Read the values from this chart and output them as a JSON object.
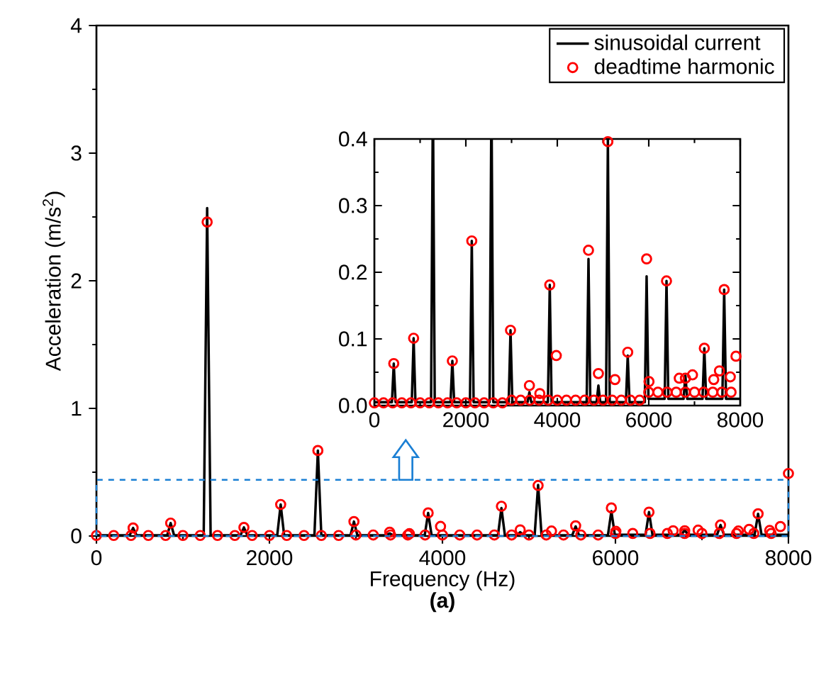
{
  "chart_data": [
    {
      "type": "line",
      "title": "(a)",
      "xlabel": "Frequency (Hz)",
      "ylabel": "Acceleration (m/s$^{2}$)",
      "xlim": [
        0,
        8000
      ],
      "ylim": [
        0,
        4
      ],
      "xticks": [
        0,
        2000,
        4000,
        6000,
        8000
      ],
      "yticks": [
        0,
        1,
        2,
        3,
        4
      ],
      "legend": "top right",
      "series": [
        {
          "name": "sinusoidal current",
          "type": "line",
          "color": "#000000",
          "x": [
            0,
            384,
            424,
            464,
            818,
            858,
            898,
            1240,
            1280,
            1320,
            1665,
            1705,
            1745,
            2090,
            2130,
            2170,
            2520,
            2560,
            2600,
            2937,
            2977,
            3017,
            3350,
            3390,
            3430,
            3795,
            3835,
            3875,
            4642,
            4682,
            4722,
            4859,
            4899,
            4939,
            5066,
            5106,
            5146,
            5500,
            5540,
            5580,
            5913,
            5953,
            5993,
            6348,
            6388,
            6428,
            6761,
            6801,
            6841,
            7175,
            7215,
            7255,
            7609,
            7649,
            7689,
            8000
          ],
          "values": [
            0.005,
            0.005,
            0.063,
            0.005,
            0.005,
            0.101,
            0.005,
            0.005,
            2.57,
            0.005,
            0.005,
            0.067,
            0.005,
            0.005,
            0.247,
            0.005,
            0.005,
            0.67,
            0.005,
            0.005,
            0.113,
            0.005,
            0.005,
            0.02,
            0.005,
            0.005,
            0.181,
            0.005,
            0.005,
            0.22,
            0.005,
            0.005,
            0.03,
            0.005,
            0.005,
            0.4,
            0.005,
            0.005,
            0.075,
            0.005,
            0.005,
            0.194,
            0.01,
            0.01,
            0.187,
            0.01,
            0.01,
            0.045,
            0.01,
            0.01,
            0.086,
            0.01,
            0.01,
            0.174,
            0.01,
            0.01
          ]
        },
        {
          "name": "deadtime harmonic",
          "type": "scatter",
          "marker": "circle",
          "color": "#ff0000",
          "x": [
            0,
            200,
            400,
            600,
            800,
            1000,
            1200,
            1400,
            1600,
            1800,
            2000,
            2200,
            2400,
            2600,
            2800,
            3000,
            3200,
            3400,
            3600,
            3800,
            4000,
            4200,
            4400,
            4600,
            4800,
            5000,
            5200,
            5400,
            5600,
            5800,
            6000,
            6200,
            6400,
            6600,
            6800,
            7000,
            7200,
            7400,
            7600,
            7800,
            424,
            858,
            1280,
            1705,
            2130,
            2560,
            2977,
            3390,
            3618,
            3835,
            3978,
            4682,
            4899,
            5106,
            5261,
            5540,
            5953,
            6005,
            6388,
            6667,
            6801,
            6956,
            7215,
            7421,
            7545,
            7649,
            7783,
            7907,
            8000
          ],
          "values": [
            0.004,
            0.004,
            0.004,
            0.004,
            0.004,
            0.004,
            0.004,
            0.004,
            0.004,
            0.004,
            0.004,
            0.004,
            0.004,
            0.004,
            0.004,
            0.008,
            0.008,
            0.008,
            0.008,
            0.008,
            0.008,
            0.008,
            0.008,
            0.008,
            0.008,
            0.008,
            0.008,
            0.008,
            0.008,
            0.008,
            0.02,
            0.02,
            0.02,
            0.02,
            0.02,
            0.02,
            0.02,
            0.02,
            0.02,
            0.02,
            0.063,
            0.101,
            2.46,
            0.067,
            0.247,
            0.67,
            0.113,
            0.03,
            0.018,
            0.181,
            0.075,
            0.233,
            0.048,
            0.396,
            0.039,
            0.08,
            0.22,
            0.036,
            0.187,
            0.041,
            0.041,
            0.046,
            0.086,
            0.039,
            0.052,
            0.174,
            0.043,
            0.074,
            0.49
          ]
        }
      ]
    },
    {
      "type": "line",
      "xlim": [
        0,
        8000
      ],
      "ylim": [
        0,
        0.4
      ],
      "xticks": [
        0,
        2000,
        4000,
        6000,
        8000
      ],
      "yticks": [
        {
          "value": 0,
          "label": "0.0"
        },
        0.1,
        0.2,
        0.3,
        0.4
      ],
      "series": [
        {
          "type": "line",
          "color": "#000000",
          "x": [
            0,
            384,
            424,
            464,
            818,
            858,
            898,
            1240,
            1274,
            1286,
            1320,
            1665,
            1705,
            1745,
            2090,
            2130,
            2170,
            2520,
            2554,
            2566,
            2600,
            2937,
            2977,
            3017,
            3350,
            3390,
            3430,
            3795,
            3835,
            3875,
            4642,
            4682,
            4722,
            4859,
            4899,
            4939,
            5066,
            5106,
            5146,
            5500,
            5540,
            5580,
            5913,
            5953,
            5993,
            6348,
            6388,
            6428,
            6761,
            6801,
            6841,
            7175,
            7215,
            7255,
            7609,
            7649,
            7689,
            8000
          ],
          "values": [
            0.005,
            0.005,
            0.063,
            0.005,
            0.005,
            0.101,
            0.005,
            0.005,
            0.4,
            0.4,
            0.005,
            0.005,
            0.067,
            0.005,
            0.005,
            0.247,
            0.005,
            0.005,
            0.4,
            0.4,
            0.005,
            0.005,
            0.113,
            0.005,
            0.005,
            0.02,
            0.005,
            0.005,
            0.181,
            0.005,
            0.005,
            0.22,
            0.005,
            0.005,
            0.03,
            0.005,
            0.005,
            0.4,
            0.005,
            0.005,
            0.075,
            0.005,
            0.005,
            0.194,
            0.01,
            0.01,
            0.187,
            0.01,
            0.01,
            0.045,
            0.01,
            0.01,
            0.086,
            0.01,
            0.01,
            0.174,
            0.01,
            0.01
          ]
        },
        {
          "type": "scatter",
          "marker": "circle",
          "color": "#ff0000",
          "x": [
            0,
            200,
            400,
            600,
            800,
            1000,
            1200,
            1400,
            1600,
            1800,
            2000,
            2200,
            2400,
            2600,
            2800,
            3000,
            3200,
            3400,
            3600,
            3800,
            4000,
            4200,
            4400,
            4600,
            4800,
            5000,
            5200,
            5400,
            5600,
            5800,
            6000,
            6200,
            6400,
            6600,
            6800,
            7000,
            7200,
            7400,
            7600,
            7800,
            424,
            858,
            1705,
            2130,
            2977,
            3390,
            3618,
            3835,
            3978,
            4682,
            4899,
            5106,
            5261,
            5540,
            5953,
            6005,
            6388,
            6667,
            6801,
            6956,
            7215,
            7421,
            7545,
            7649,
            7783,
            7907
          ],
          "values": [
            0.004,
            0.004,
            0.004,
            0.004,
            0.004,
            0.004,
            0.004,
            0.004,
            0.004,
            0.004,
            0.004,
            0.004,
            0.004,
            0.004,
            0.004,
            0.008,
            0.008,
            0.008,
            0.008,
            0.008,
            0.008,
            0.008,
            0.008,
            0.008,
            0.008,
            0.008,
            0.008,
            0.008,
            0.008,
            0.008,
            0.02,
            0.02,
            0.02,
            0.02,
            0.02,
            0.02,
            0.02,
            0.02,
            0.02,
            0.02,
            0.063,
            0.101,
            0.067,
            0.247,
            0.113,
            0.03,
            0.018,
            0.181,
            0.075,
            0.233,
            0.048,
            0.396,
            0.039,
            0.08,
            0.22,
            0.036,
            0.187,
            0.041,
            0.041,
            0.046,
            0.086,
            0.039,
            0.052,
            0.174,
            0.043,
            0.074
          ]
        }
      ]
    }
  ]
}
